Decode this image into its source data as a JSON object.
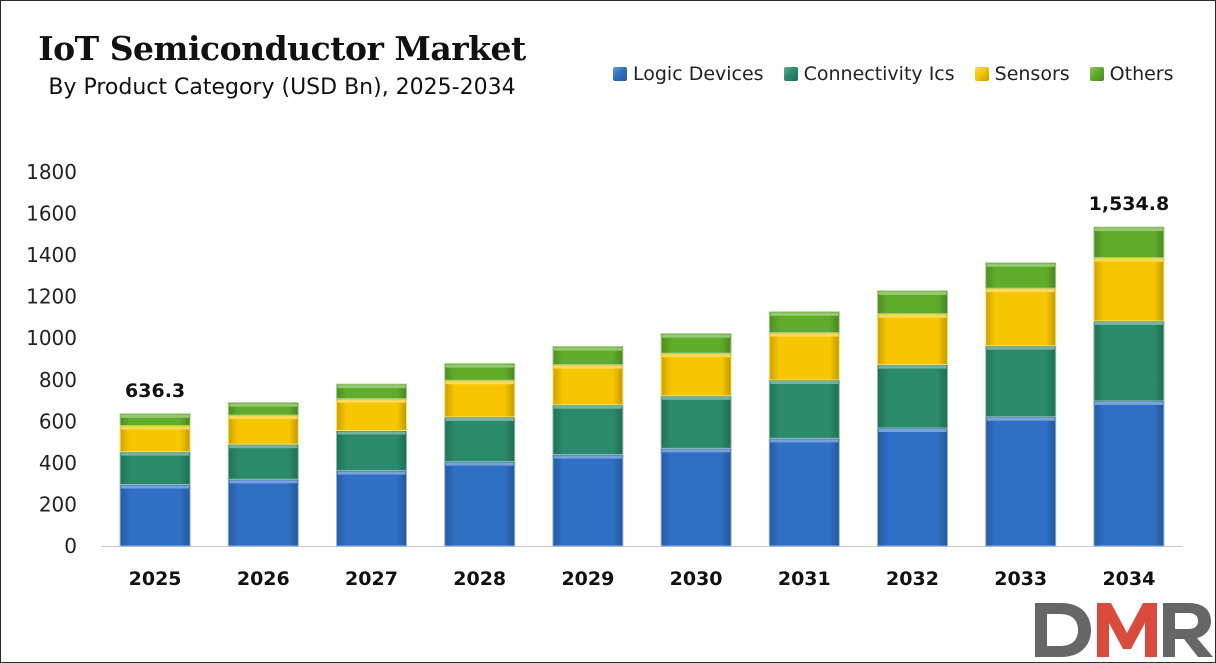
{
  "chart_data": {
    "type": "bar",
    "stacked": true,
    "title": "IoT Semiconductor Market",
    "subtitle": "By Product Category (USD Bn), 2025-2034",
    "categories": [
      "2025",
      "2026",
      "2027",
      "2028",
      "2029",
      "2030",
      "2031",
      "2032",
      "2033",
      "2034"
    ],
    "series": [
      {
        "name": "Logic Devices",
        "color": "#2f6fc4",
        "values": [
          296,
          321,
          363,
          406,
          440,
          470,
          518,
          568,
          622,
          698
        ]
      },
      {
        "name": "Connectivity Ics",
        "color": "#2a8a6a",
        "values": [
          158,
          169,
          193,
          215,
          240,
          253,
          281,
          305,
          342,
          385
        ]
      },
      {
        "name": "Sensors",
        "color": "#f7c600",
        "values": [
          126,
          140,
          153,
          177,
          193,
          205,
          228,
          245,
          277,
          305
        ]
      },
      {
        "name": "Others",
        "color": "#5fac2a",
        "values": [
          56.3,
          60,
          70,
          80,
          87,
          94,
          100,
          110,
          122,
          146.8
        ]
      }
    ],
    "ylim": [
      0,
      1800
    ],
    "yticks": [
      0,
      200,
      400,
      600,
      800,
      1000,
      1200,
      1400,
      1600,
      1800
    ],
    "grid": false,
    "legend": "top-right",
    "annotations": [
      {
        "category": "2025",
        "label": "636.3"
      },
      {
        "category": "2034",
        "label": "1,534.8"
      }
    ]
  },
  "logo": {
    "text": "DMR"
  }
}
